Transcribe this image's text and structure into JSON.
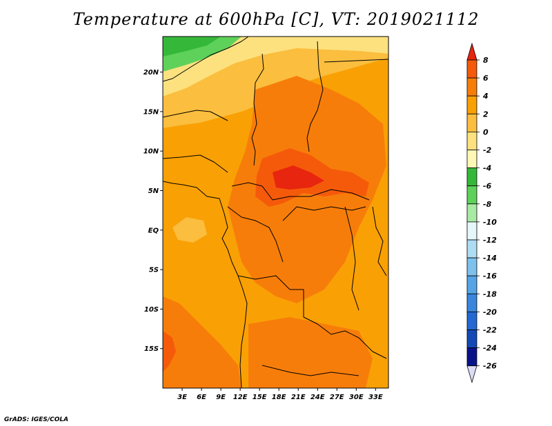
{
  "title": "Temperature at 600hPa [C], VT: 2019021112",
  "credit": "GrADS: IGES/COLA",
  "map": {
    "lon_range": [
      0,
      35
    ],
    "lat_range": [
      -20,
      24.5
    ],
    "lat_ticks": [
      {
        "value": 20,
        "label": "20N"
      },
      {
        "value": 15,
        "label": "15N"
      },
      {
        "value": 10,
        "label": "10N"
      },
      {
        "value": 5,
        "label": "5N"
      },
      {
        "value": 0,
        "label": "EQ"
      },
      {
        "value": -5,
        "label": "5S"
      },
      {
        "value": -10,
        "label": "10S"
      },
      {
        "value": -15,
        "label": "15S"
      }
    ],
    "lon_ticks": [
      {
        "value": 3,
        "label": "3E"
      },
      {
        "value": 6,
        "label": "6E"
      },
      {
        "value": 9,
        "label": "9E"
      },
      {
        "value": 12,
        "label": "12E"
      },
      {
        "value": 15,
        "label": "15E"
      },
      {
        "value": 18,
        "label": "18E"
      },
      {
        "value": 21,
        "label": "21E"
      },
      {
        "value": 24,
        "label": "24E"
      },
      {
        "value": 27,
        "label": "27E"
      },
      {
        "value": 30,
        "label": "30E"
      },
      {
        "value": 33,
        "label": "33E"
      }
    ]
  },
  "colorbar": {
    "labels": [
      "8",
      "6",
      "4",
      "2",
      "0",
      "-2",
      "-4",
      "-6",
      "-8",
      "-10",
      "-12",
      "-14",
      "-16",
      "-18",
      "-20",
      "-22",
      "-24",
      "-26"
    ],
    "colors": [
      "#e8250f",
      "#f55a0a",
      "#f77d0a",
      "#f9a005",
      "#fbbe3e",
      "#fde17f",
      "#fff7b6",
      "#35b83a",
      "#5ed15a",
      "#a8eaa4",
      "#e5f7f9",
      "#aedcf3",
      "#7fc1ed",
      "#55a5e6",
      "#3a86dd",
      "#2468d2",
      "#1448b6",
      "#08138a"
    ],
    "bottom_color": "#dcdcf5"
  },
  "temperature_regions": [
    {
      "name": "background",
      "value": 3
    },
    {
      "name": "sahara-north-edge",
      "value": -5
    },
    {
      "name": "sahel-cool-band",
      "value": -1
    },
    {
      "name": "sahel-warm-band",
      "value": 1
    },
    {
      "name": "central-african-hot-core",
      "value": 7
    },
    {
      "name": "congo-basin-warm",
      "value": 5
    },
    {
      "name": "angola-coast-warm",
      "value": 5
    }
  ]
}
